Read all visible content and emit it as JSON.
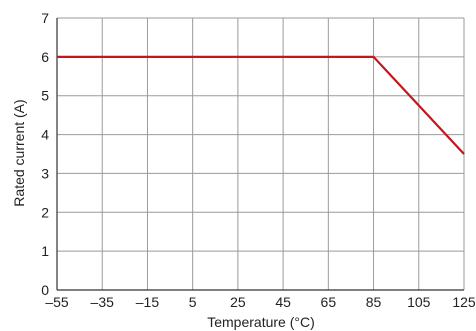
{
  "chart_data": {
    "type": "line",
    "title": "",
    "xlabel": "Temperature (°C)",
    "ylabel": "Rated current (A)",
    "xlim": [
      -55,
      125
    ],
    "ylim": [
      0,
      7
    ],
    "x_ticks": [
      -55,
      -35,
      -15,
      5,
      25,
      45,
      65,
      85,
      105,
      125
    ],
    "x_tick_labels": [
      "–55",
      "–35",
      "–15",
      "5",
      "25",
      "45",
      "65",
      "85",
      "105",
      "125"
    ],
    "y_ticks": [
      0,
      1,
      2,
      3,
      4,
      5,
      6,
      7
    ],
    "y_tick_labels": [
      "0",
      "1",
      "2",
      "3",
      "4",
      "5",
      "6",
      "7"
    ],
    "grid": true,
    "series": [
      {
        "color": "#c4161c",
        "x": [
          -55,
          85,
          125
        ],
        "y": [
          6,
          6,
          3.5
        ]
      }
    ]
  }
}
